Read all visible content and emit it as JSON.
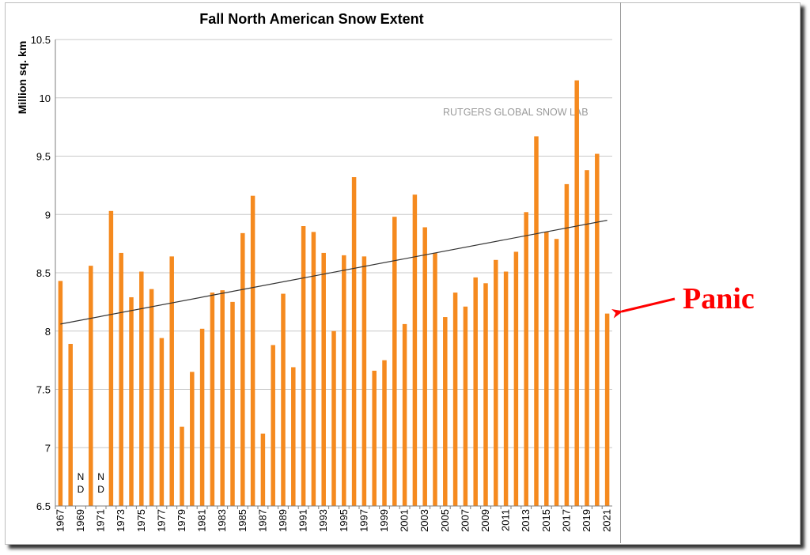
{
  "chart_data": {
    "type": "bar",
    "title": "Fall North American Snow Extent",
    "ylabel": "Million sq. km",
    "xlabel": "",
    "ylim": [
      6.5,
      10.5
    ],
    "yticks": [
      "6.5",
      "7",
      "7.5",
      "8",
      "8.5",
      "9",
      "9.5",
      "10",
      "10.5"
    ],
    "grid": true,
    "bar_color": "#f58a1f",
    "x": [
      1967,
      1968,
      1969,
      1970,
      1971,
      1972,
      1973,
      1974,
      1975,
      1976,
      1977,
      1978,
      1979,
      1980,
      1981,
      1982,
      1983,
      1984,
      1985,
      1986,
      1987,
      1988,
      1989,
      1990,
      1991,
      1992,
      1993,
      1994,
      1995,
      1996,
      1997,
      1998,
      1999,
      2000,
      2001,
      2002,
      2003,
      2004,
      2005,
      2006,
      2007,
      2008,
      2009,
      2010,
      2011,
      2012,
      2013,
      2014,
      2015,
      2016,
      2017,
      2018,
      2019,
      2020,
      2021
    ],
    "xtick_labels": [
      "1967",
      "1969",
      "1971",
      "1973",
      "1975",
      "1977",
      "1979",
      "1981",
      "1983",
      "1985",
      "1987",
      "1989",
      "1991",
      "1993",
      "1995",
      "1997",
      "1999",
      "2001",
      "2003",
      "2005",
      "2007",
      "2009",
      "2011",
      "2013",
      "2015",
      "2017",
      "2019",
      "2021"
    ],
    "values": [
      8.43,
      7.89,
      null,
      8.56,
      null,
      9.03,
      8.67,
      8.29,
      8.51,
      8.36,
      7.94,
      8.64,
      7.18,
      7.65,
      8.02,
      8.33,
      8.35,
      8.25,
      8.84,
      9.16,
      7.12,
      7.88,
      8.32,
      7.69,
      8.9,
      8.85,
      8.67,
      8.0,
      8.65,
      9.32,
      8.64,
      7.66,
      7.75,
      8.98,
      8.06,
      9.17,
      8.89,
      8.67,
      8.12,
      8.33,
      8.21,
      8.46,
      8.41,
      8.61,
      8.51,
      8.68,
      9.02,
      9.67,
      8.85,
      8.79,
      9.26,
      10.15,
      9.38,
      9.52,
      8.15
    ],
    "no_data_label": "N D",
    "no_data_years": [
      1969,
      1971
    ],
    "trendline": {
      "x": [
        1967,
        2021
      ],
      "y": [
        8.06,
        8.95
      ],
      "color": "#333333"
    },
    "watermark": "RUTGERS GLOBAL SNOW LAB"
  },
  "annotation": {
    "text": "Panic",
    "color": "#ff0000",
    "points_to_year": 2021
  }
}
